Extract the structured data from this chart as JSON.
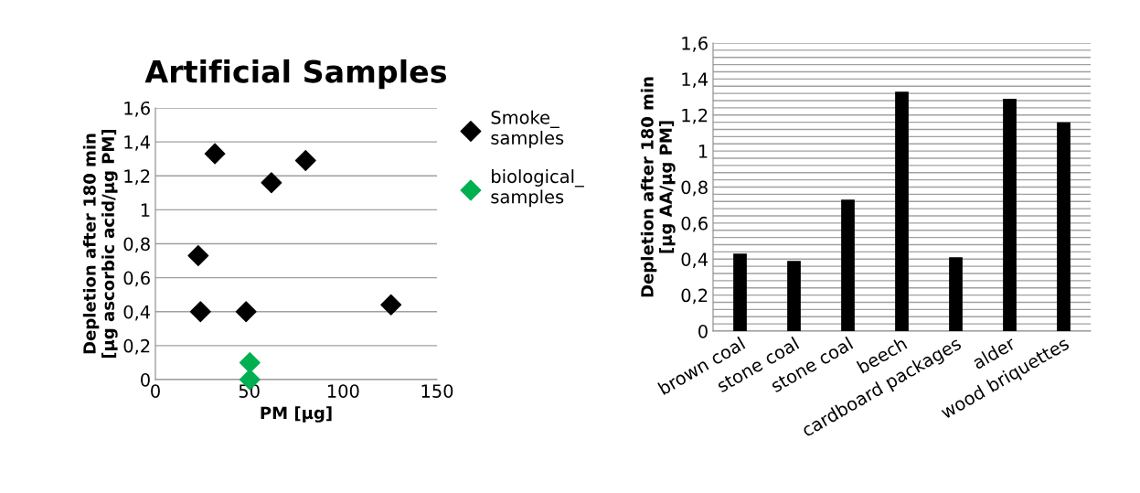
{
  "chart_data": [
    {
      "type": "scatter",
      "title": "Artificial Samples",
      "xlabel": "PM [µg]",
      "ylabel": "Depletion after 180 min\n[µg ascorbic acid/µg PM]",
      "marker": "diamond",
      "legend": "right",
      "grid": "y",
      "xlim": [
        0,
        150
      ],
      "xticks": [
        0,
        50,
        100,
        150
      ],
      "ylim": [
        0,
        1.6
      ],
      "yticks": [
        {
          "value": 0,
          "label": "0"
        },
        {
          "value": 0.2,
          "label": "0,2"
        },
        {
          "value": 0.4,
          "label": "0,4"
        },
        {
          "value": 0.6,
          "label": "0,6"
        },
        {
          "value": 0.8,
          "label": "0,8"
        },
        {
          "value": 1,
          "label": "1"
        },
        {
          "value": 1.2,
          "label": "1,2"
        },
        {
          "value": 1.4,
          "label": "1,4"
        },
        {
          "value": 1.6,
          "label": "1,6"
        }
      ],
      "series": [
        {
          "name": "Smoke_\nsamples",
          "color": "#000000",
          "x": [
            31.7,
            80,
            61.8,
            22.8,
            24,
            48.3,
            125.5
          ],
          "values": [
            1.33,
            1.29,
            1.16,
            0.73,
            0.4,
            0.4,
            0.44
          ]
        },
        {
          "name": "biological_\nsamples",
          "color": "#00b050",
          "x": [
            50.3,
            50.3
          ],
          "values": [
            0.1,
            0
          ]
        }
      ]
    },
    {
      "type": "bar",
      "ylabel": "Depletion after 180 min\n[µg AA/µg PM]",
      "grid": "y",
      "categories": [
        "brown coal",
        "stone coal",
        "stone coal",
        "beech",
        "cardboard packages",
        "alder",
        "wood briquettes"
      ],
      "values": [
        0.43,
        0.39,
        0.73,
        1.33,
        0.41,
        1.29,
        1.16
      ],
      "color": "#000000",
      "ylim": [
        0,
        1.6
      ],
      "yticks": [
        {
          "value": 0,
          "label": "0"
        },
        {
          "value": 0.04,
          "label": null
        },
        {
          "value": 0.08,
          "label": null
        },
        {
          "value": 0.12,
          "label": null
        },
        {
          "value": 0.16,
          "label": null
        },
        {
          "value": 0.2,
          "label": "0,2"
        },
        {
          "value": 0.24,
          "label": null
        },
        {
          "value": 0.28,
          "label": null
        },
        {
          "value": 0.32,
          "label": null
        },
        {
          "value": 0.36,
          "label": null
        },
        {
          "value": 0.4,
          "label": "0,4"
        },
        {
          "value": 0.44,
          "label": null
        },
        {
          "value": 0.48,
          "label": null
        },
        {
          "value": 0.52,
          "label": null
        },
        {
          "value": 0.56,
          "label": null
        },
        {
          "value": 0.6,
          "label": "0,6"
        },
        {
          "value": 0.64,
          "label": null
        },
        {
          "value": 0.68,
          "label": null
        },
        {
          "value": 0.72,
          "label": null
        },
        {
          "value": 0.76,
          "label": null
        },
        {
          "value": 0.8,
          "label": "0,8"
        },
        {
          "value": 0.84,
          "label": null
        },
        {
          "value": 0.88,
          "label": null
        },
        {
          "value": 0.92,
          "label": null
        },
        {
          "value": 0.96,
          "label": null
        },
        {
          "value": 1,
          "label": "1"
        },
        {
          "value": 1.04,
          "label": null
        },
        {
          "value": 1.08,
          "label": null
        },
        {
          "value": 1.12,
          "label": null
        },
        {
          "value": 1.16,
          "label": null
        },
        {
          "value": 1.2,
          "label": "1,2"
        },
        {
          "value": 1.24,
          "label": null
        },
        {
          "value": 1.28,
          "label": null
        },
        {
          "value": 1.32,
          "label": null
        },
        {
          "value": 1.36,
          "label": null
        },
        {
          "value": 1.4,
          "label": "1,4"
        },
        {
          "value": 1.44,
          "label": null
        },
        {
          "value": 1.48,
          "label": null
        },
        {
          "value": 1.52,
          "label": null
        },
        {
          "value": 1.56,
          "label": null
        },
        {
          "value": 1.6,
          "label": "1,6"
        }
      ]
    }
  ]
}
